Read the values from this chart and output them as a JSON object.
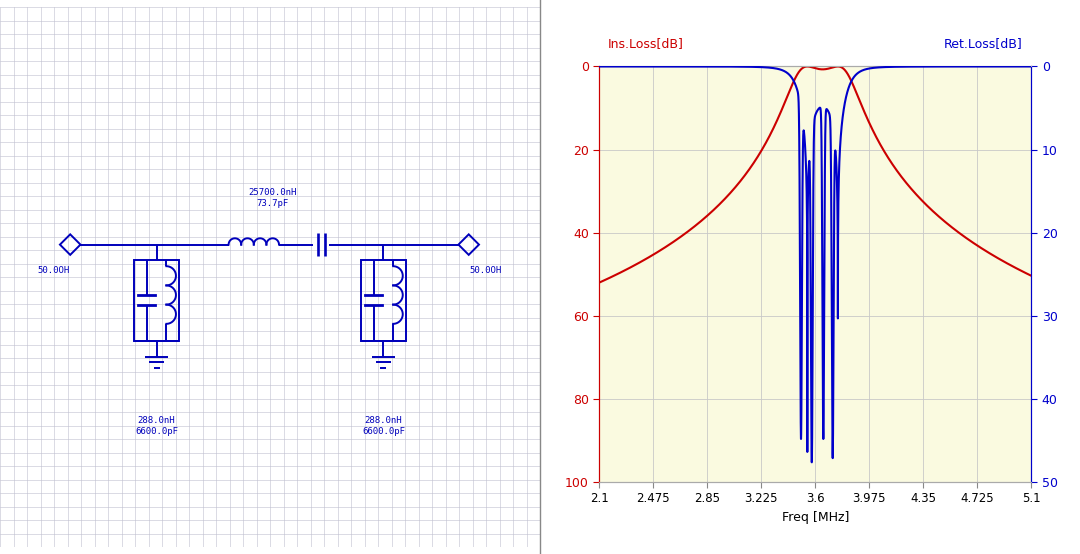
{
  "fig_width": 10.8,
  "fig_height": 5.54,
  "dpi": 100,
  "bg_color_left": "#ececec",
  "bg_color_right": "#fafae0",
  "grid_color_left": "#c0c0d0",
  "grid_color_right": "#c8c8c8",
  "circuit_color": "#0000bb",
  "circuit_lw": 1.4,
  "freq_min": 2.1,
  "freq_max": 5.1,
  "freq_ticks": [
    2.1,
    2.475,
    2.85,
    3.225,
    3.6,
    3.975,
    4.35,
    4.725,
    5.1
  ],
  "ins_loss_ticks": [
    0,
    20,
    40,
    60,
    80,
    100
  ],
  "ret_loss_ticks": [
    0,
    10,
    20,
    30,
    40,
    50
  ],
  "ins_loss_label": "Ins.Loss[dB]",
  "ret_loss_label": "Ret.Loss[dB]",
  "freq_label": "Freq [MHz]",
  "ins_color": "#cc0000",
  "ret_color": "#0000cc",
  "label_50ohm_left": "50.0OH",
  "label_50ohm_right": "50.0OH",
  "label_series": "25700.0nH\n73.7pF",
  "label_shunt_left": "288.0nH\n6600.0pF",
  "label_shunt_right": "288.0nH\n6600.0pF",
  "f0": 3.65,
  "bw": 0.3
}
